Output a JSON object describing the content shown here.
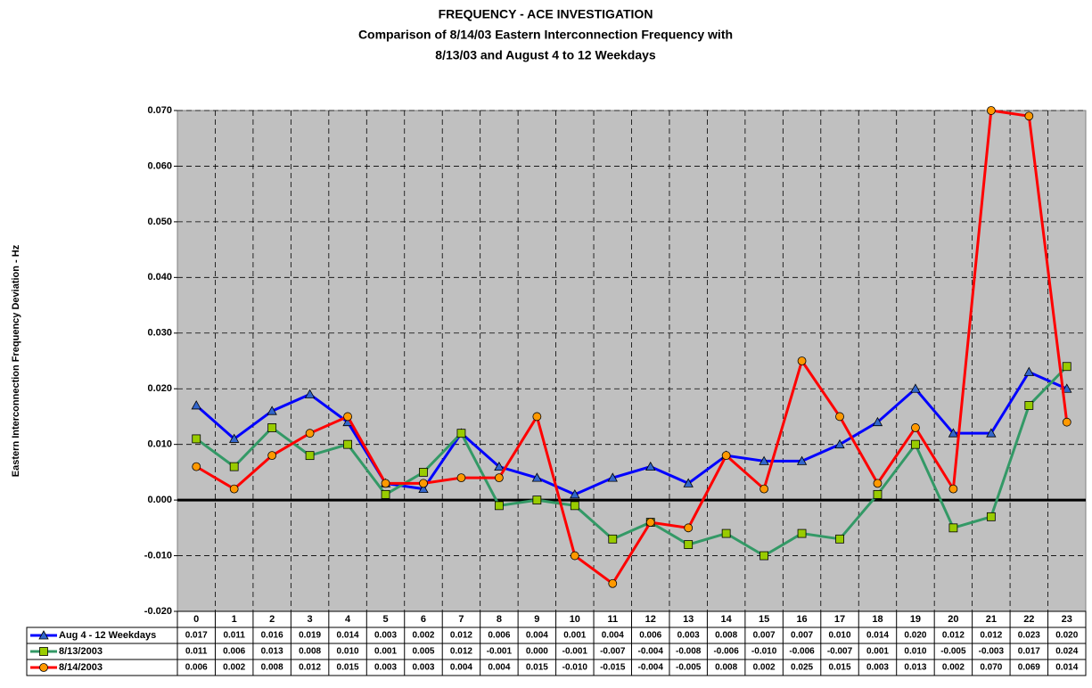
{
  "chart_data": {
    "type": "line",
    "title": "FREQUENCY - ACE INVESTIGATION",
    "subtitle": [
      "Comparison of 8/14/03 Eastern Interconnection Frequency with",
      "8/13/03 and August 4 to 12 Weekdays"
    ],
    "y_label": "Eastern Interconnection Frequency Deviation - Hz",
    "categories": [
      "0",
      "1",
      "2",
      "3",
      "4",
      "5",
      "6",
      "7",
      "8",
      "9",
      "10",
      "11",
      "12",
      "13",
      "14",
      "15",
      "16",
      "17",
      "18",
      "19",
      "20",
      "21",
      "22",
      "23"
    ],
    "series": [
      {
        "name": "Aug 4 - 12 Weekdays",
        "color": "#0000ff",
        "marker": "triangle",
        "marker_color": "#3366cc",
        "values": [
          0.017,
          0.011,
          0.016,
          0.019,
          0.014,
          0.003,
          0.002,
          0.012,
          0.006,
          0.004,
          0.001,
          0.004,
          0.006,
          0.003,
          0.008,
          0.007,
          0.007,
          0.01,
          0.014,
          0.02,
          0.012,
          0.012,
          0.023,
          0.02
        ],
        "value_labels": [
          "0.017",
          "0.011",
          "0.016",
          "0.019",
          "0.014",
          "0.003",
          "0.002",
          "0.012",
          "0.006",
          "0.004",
          "0.001",
          "0.004",
          "0.006",
          "0.003",
          "0.008",
          "0.007",
          "0.007",
          "0.010",
          "0.014",
          "0.020",
          "0.012",
          "0.012",
          "0.023",
          "0.020"
        ]
      },
      {
        "name": "8/13/2003",
        "color": "#339966",
        "marker": "square",
        "marker_color": "#99cc00",
        "values": [
          0.011,
          0.006,
          0.013,
          0.008,
          0.01,
          0.001,
          0.005,
          0.012,
          -0.001,
          0.0,
          -0.001,
          -0.007,
          -0.004,
          -0.008,
          -0.006,
          -0.01,
          -0.006,
          -0.007,
          0.001,
          0.01,
          -0.005,
          -0.003,
          0.017,
          0.024
        ],
        "value_labels": [
          "0.011",
          "0.006",
          "0.013",
          "0.008",
          "0.010",
          "0.001",
          "0.005",
          "0.012",
          "-0.001",
          "0.000",
          "-0.001",
          "-0.007",
          "-0.004",
          "-0.008",
          "-0.006",
          "-0.010",
          "-0.006",
          "-0.007",
          "0.001",
          "0.010",
          "-0.005",
          "-0.003",
          "0.017",
          "0.024"
        ]
      },
      {
        "name": "8/14/2003",
        "color": "#ff0000",
        "marker": "circle",
        "marker_color": "#ff9900",
        "values": [
          0.006,
          0.002,
          0.008,
          0.012,
          0.015,
          0.003,
          0.003,
          0.004,
          0.004,
          0.015,
          -0.01,
          -0.015,
          -0.004,
          -0.005,
          0.008,
          0.002,
          0.025,
          0.015,
          0.003,
          0.013,
          0.002,
          0.07,
          0.069,
          0.014
        ],
        "value_labels": [
          "0.006",
          "0.002",
          "0.008",
          "0.012",
          "0.015",
          "0.003",
          "0.003",
          "0.004",
          "0.004",
          "0.015",
          "-0.010",
          "-0.015",
          "-0.004",
          "-0.005",
          "0.008",
          "0.002",
          "0.025",
          "0.015",
          "0.003",
          "0.013",
          "0.002",
          "0.070",
          "0.069",
          "0.014"
        ]
      }
    ],
    "ylim": [
      -0.02,
      0.07
    ],
    "yticks": [
      {
        "value": -0.02,
        "label": "-0.020"
      },
      {
        "value": -0.01,
        "label": "-0.010"
      },
      {
        "value": 0,
        "label": "0.000"
      },
      {
        "value": 0.01,
        "label": "0.010"
      },
      {
        "value": 0.02,
        "label": "0.020"
      },
      {
        "value": 0.03,
        "label": "0.030"
      },
      {
        "value": 0.04,
        "label": "0.040"
      },
      {
        "value": 0.05,
        "label": "0.050"
      },
      {
        "value": 0.06,
        "label": "0.060"
      },
      {
        "value": 0.07,
        "label": "0.070"
      }
    ],
    "grid": true,
    "plot_background": "#c0c0c0",
    "data_table": true
  }
}
